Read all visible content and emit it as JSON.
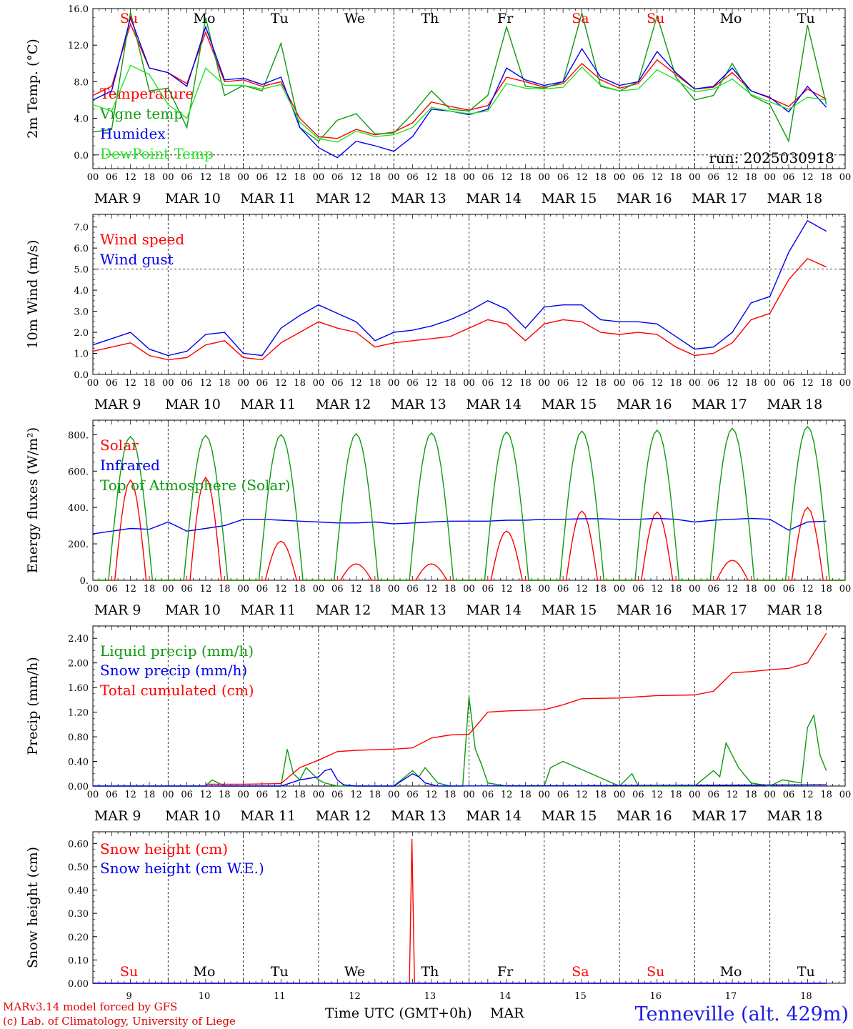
{
  "chart_data": [
    {
      "type": "line",
      "ylabel": "2m Temp. (°C)",
      "ylim": [
        -1.5,
        16.0
      ],
      "yticks": [
        "0.0",
        "4.0",
        "8.0",
        "12.0",
        "16.0"
      ],
      "ytick_values": [
        0,
        4,
        8,
        12,
        16
      ],
      "hline": 0,
      "annotation": "run: 2025030918",
      "series": [
        {
          "name": "Temperature",
          "color": "#ff0000",
          "t": [
            0,
            6,
            12,
            18,
            24,
            30,
            36,
            42,
            48,
            54,
            60,
            66,
            72,
            78,
            84,
            90,
            96,
            102,
            108,
            114,
            120,
            126,
            132,
            138,
            144,
            150,
            156,
            162,
            168,
            174,
            180,
            186,
            192,
            198,
            204,
            210,
            216,
            222,
            228,
            234
          ],
          "values": [
            6.5,
            7.5,
            14.3,
            9.5,
            9.0,
            7.8,
            13.4,
            8.0,
            8.2,
            7.5,
            8.0,
            4.0,
            2.0,
            1.8,
            2.8,
            2.2,
            2.5,
            3.5,
            5.8,
            5.3,
            4.9,
            5.4,
            8.5,
            8.0,
            7.4,
            7.8,
            10.0,
            8.2,
            7.3,
            7.8,
            10.4,
            8.8,
            7.2,
            7.4,
            9.0,
            7.0,
            6.2,
            5.3,
            7.2,
            6.1
          ]
        },
        {
          "name": "Vigne temp",
          "color": "#0f9a0f",
          "t": [
            0,
            6,
            12,
            18,
            24,
            30,
            36,
            42,
            48,
            54,
            60,
            66,
            72,
            78,
            84,
            90,
            96,
            102,
            108,
            114,
            120,
            126,
            132,
            138,
            144,
            150,
            156,
            162,
            168,
            174,
            180,
            186,
            192,
            198,
            204,
            210,
            216,
            222,
            228,
            234
          ],
          "values": [
            2.5,
            2.8,
            15.6,
            7.0,
            7.3,
            3.0,
            15.0,
            6.5,
            7.6,
            7.0,
            12.2,
            3.0,
            1.5,
            3.8,
            4.5,
            2.3,
            2.4,
            4.5,
            7.0,
            5.0,
            4.8,
            6.5,
            14.0,
            7.5,
            7.3,
            8.0,
            15.5,
            7.5,
            7.0,
            8.0,
            15.2,
            8.5,
            6.0,
            6.5,
            10.0,
            6.5,
            5.5,
            1.5,
            14.2,
            5.5
          ]
        },
        {
          "name": "Humidex",
          "color": "#0000ee",
          "t": [
            0,
            6,
            12,
            18,
            24,
            30,
            36,
            42,
            48,
            54,
            60,
            66,
            72,
            78,
            84,
            90,
            96,
            102,
            108,
            114,
            120,
            126,
            132,
            138,
            144,
            150,
            156,
            162,
            168,
            174,
            180,
            186,
            192,
            198,
            204,
            210,
            216,
            222,
            228,
            234
          ],
          "values": [
            6.0,
            7.0,
            15.0,
            9.5,
            9.0,
            7.5,
            14.0,
            8.2,
            8.4,
            7.7,
            8.5,
            3.0,
            0.8,
            -0.3,
            1.5,
            1.0,
            0.4,
            2.0,
            5.0,
            4.8,
            4.4,
            5.0,
            9.5,
            8.2,
            7.6,
            8.0,
            11.6,
            8.5,
            7.6,
            8.0,
            11.3,
            9.0,
            7.2,
            7.5,
            9.5,
            7.0,
            6.3,
            4.7,
            7.5,
            5.2
          ]
        },
        {
          "name": "DewPoint Temp",
          "color": "#22e622",
          "t": [
            0,
            6,
            12,
            18,
            24,
            30,
            36,
            42,
            48,
            54,
            60,
            66,
            72,
            78,
            84,
            90,
            96,
            102,
            108,
            114,
            120,
            126,
            132,
            138,
            144,
            150,
            156,
            162,
            168,
            174,
            180,
            186,
            192,
            198,
            204,
            210,
            216,
            222,
            228,
            234
          ],
          "values": [
            5.5,
            4.8,
            9.8,
            8.8,
            5.5,
            4.0,
            9.5,
            7.6,
            7.6,
            7.2,
            7.7,
            3.6,
            1.8,
            1.4,
            2.6,
            2.0,
            2.2,
            3.0,
            5.2,
            4.8,
            4.5,
            4.8,
            7.8,
            7.3,
            7.2,
            7.4,
            9.6,
            7.6,
            7.0,
            7.2,
            9.3,
            8.2,
            6.9,
            7.2,
            8.3,
            6.6,
            5.8,
            5.0,
            6.3,
            6.0
          ]
        }
      ]
    },
    {
      "type": "line",
      "ylabel": "10m Wind (m/s)",
      "ylim": [
        0,
        7.6
      ],
      "yticks": [
        "0.0",
        "1.0",
        "2.0",
        "3.0",
        "4.0",
        "5.0",
        "6.0",
        "7.0"
      ],
      "ytick_values": [
        0,
        1,
        2,
        3,
        4,
        5,
        6,
        7
      ],
      "hline": 5,
      "series": [
        {
          "name": "Wind speed",
          "color": "#ff0000",
          "t": [
            0,
            6,
            12,
            18,
            24,
            30,
            36,
            42,
            48,
            54,
            60,
            66,
            72,
            78,
            84,
            90,
            96,
            102,
            108,
            114,
            120,
            126,
            132,
            138,
            144,
            150,
            156,
            162,
            168,
            174,
            180,
            186,
            192,
            198,
            204,
            210,
            216,
            222,
            228,
            234
          ],
          "values": [
            1.1,
            1.3,
            1.5,
            0.9,
            0.7,
            0.8,
            1.4,
            1.6,
            0.8,
            0.7,
            1.5,
            2.0,
            2.5,
            2.2,
            2.0,
            1.3,
            1.5,
            1.6,
            1.7,
            1.8,
            2.2,
            2.6,
            2.4,
            1.6,
            2.4,
            2.6,
            2.5,
            2.0,
            1.9,
            2.0,
            1.9,
            1.3,
            0.9,
            1.0,
            1.5,
            2.6,
            2.9,
            4.5,
            5.5,
            5.1
          ]
        },
        {
          "name": "Wind gust",
          "color": "#0000ee",
          "t": [
            0,
            6,
            12,
            18,
            24,
            30,
            36,
            42,
            48,
            54,
            60,
            66,
            72,
            78,
            84,
            90,
            96,
            102,
            108,
            114,
            120,
            126,
            132,
            138,
            144,
            150,
            156,
            162,
            168,
            174,
            180,
            186,
            192,
            198,
            204,
            210,
            216,
            222,
            228,
            234
          ],
          "values": [
            1.4,
            1.7,
            2.0,
            1.2,
            0.9,
            1.1,
            1.9,
            2.0,
            1.0,
            0.9,
            2.2,
            2.8,
            3.3,
            2.9,
            2.5,
            1.6,
            2.0,
            2.1,
            2.3,
            2.6,
            3.0,
            3.5,
            3.1,
            2.2,
            3.2,
            3.3,
            3.3,
            2.6,
            2.5,
            2.5,
            2.4,
            1.8,
            1.2,
            1.3,
            2.0,
            3.4,
            3.7,
            5.8,
            7.3,
            6.8
          ]
        }
      ]
    },
    {
      "type": "line",
      "ylabel": "Energy fluxes (W/m²)",
      "ylim": [
        0,
        880
      ],
      "yticks": [
        "0.",
        "200.",
        "400.",
        "600.",
        "800."
      ],
      "ytick_values": [
        0,
        200,
        400,
        600,
        800
      ],
      "series": [
        {
          "name": "Solar",
          "color": "#ff0000",
          "peaks": [
            550,
            565,
            215,
            90,
            90,
            270,
            380,
            375,
            110,
            400
          ]
        },
        {
          "name": "Infrared",
          "color": "#0000ee",
          "t": [
            0,
            6,
            12,
            18,
            24,
            30,
            36,
            42,
            48,
            54,
            60,
            66,
            72,
            78,
            84,
            90,
            96,
            102,
            108,
            114,
            120,
            126,
            132,
            138,
            144,
            150,
            156,
            162,
            168,
            174,
            180,
            186,
            192,
            198,
            204,
            210,
            216,
            222,
            228,
            234
          ],
          "values": [
            255,
            270,
            285,
            280,
            320,
            270,
            285,
            300,
            335,
            335,
            330,
            325,
            320,
            315,
            315,
            320,
            310,
            315,
            320,
            325,
            325,
            325,
            330,
            330,
            335,
            335,
            338,
            338,
            335,
            335,
            340,
            335,
            320,
            330,
            335,
            340,
            335,
            275,
            320,
            325
          ]
        },
        {
          "name": "Top of Atmosphere (Solar)",
          "color": "#0f9a0f",
          "peaks": [
            790,
            795,
            800,
            805,
            810,
            815,
            820,
            825,
            835,
            845
          ]
        }
      ]
    },
    {
      "type": "line",
      "ylabel": "Precip (mm/h)",
      "ylim": [
        0,
        2.6
      ],
      "yticks": [
        "0.00",
        "0.40",
        "0.80",
        "1.20",
        "1.60",
        "2.00",
        "2.40"
      ],
      "ytick_values": [
        0,
        0.4,
        0.8,
        1.2,
        1.6,
        2.0,
        2.4
      ],
      "series": [
        {
          "name": "Liquid precip (mm/h)",
          "color": "#0f9a0f",
          "t": [
            0,
            24,
            36,
            38,
            42,
            48,
            54,
            60,
            62,
            64,
            66,
            68,
            72,
            74,
            78,
            84,
            96,
            102,
            104,
            106,
            110,
            114,
            118,
            120,
            122,
            124,
            126,
            132,
            144,
            146,
            150,
            168,
            172,
            174,
            192,
            198,
            200,
            202,
            204,
            206,
            210,
            216,
            220,
            226,
            228,
            230,
            232,
            234
          ],
          "values": [
            0,
            0,
            0,
            0.1,
            0,
            0,
            0,
            0,
            0.6,
            0.2,
            0.1,
            0.3,
            0.1,
            0.05,
            0,
            0,
            0,
            0.25,
            0.15,
            0.3,
            0.05,
            0,
            0,
            1.45,
            0.6,
            0.35,
            0.05,
            0,
            0,
            0.3,
            0.4,
            0,
            0.2,
            0,
            0,
            0.25,
            0.15,
            0.7,
            0.5,
            0.3,
            0.05,
            0,
            0.1,
            0.05,
            0.95,
            1.15,
            0.5,
            0.25
          ]
        },
        {
          "name": "Snow precip (mm/h)",
          "color": "#0000ee",
          "t": [
            0,
            60,
            66,
            72,
            74,
            76,
            78,
            80,
            84,
            90,
            96,
            102,
            104,
            106,
            110,
            114,
            234
          ],
          "values": [
            0,
            0,
            0.1,
            0.15,
            0.25,
            0.28,
            0.1,
            0.02,
            0,
            0,
            0,
            0.2,
            0.15,
            0.05,
            0,
            0,
            0.02
          ]
        },
        {
          "name": "Total cumulated (cm)",
          "color": "#ff0000",
          "t": [
            36,
            48,
            60,
            66,
            72,
            78,
            84,
            96,
            102,
            108,
            114,
            120,
            126,
            132,
            144,
            150,
            156,
            168,
            180,
            192,
            198,
            204,
            210,
            216,
            222,
            228,
            234
          ],
          "values": [
            0.03,
            0.03,
            0.04,
            0.3,
            0.42,
            0.56,
            0.58,
            0.6,
            0.62,
            0.78,
            0.83,
            0.84,
            1.2,
            1.22,
            1.24,
            1.32,
            1.42,
            1.43,
            1.47,
            1.48,
            1.54,
            1.84,
            1.86,
            1.89,
            1.91,
            2.0,
            2.48
          ]
        }
      ]
    },
    {
      "type": "line",
      "ylabel": "Snow height (cm)",
      "ylim": [
        0,
        0.65
      ],
      "yticks": [
        "0.00",
        "0.10",
        "0.20",
        "0.30",
        "0.40",
        "0.50",
        "0.60"
      ],
      "ytick_values": [
        0,
        0.1,
        0.2,
        0.3,
        0.4,
        0.5,
        0.6
      ],
      "xlabel": "Time UTC (GMT+0h)",
      "xmonth": "MAR",
      "series": [
        {
          "name": "Snow height (cm)",
          "color": "#ff0000",
          "t": [
            0,
            101,
            101.8,
            102.6,
            234
          ],
          "values": [
            0,
            0,
            0.62,
            0,
            0
          ]
        },
        {
          "name": "Snow height (cm W.E.)",
          "color": "#0000ee",
          "t": [
            0,
            234
          ],
          "values": [
            0,
            0
          ]
        }
      ]
    }
  ],
  "x_axis": {
    "hour_labels": [
      "00",
      "06",
      "12",
      "18"
    ],
    "date_labels": [
      "MAR  9",
      "MAR 10",
      "MAR 11",
      "MAR 12",
      "MAR 13",
      "MAR 14",
      "MAR 15",
      "MAR 16",
      "MAR 17",
      "MAR 18"
    ],
    "day_names": [
      "Su",
      "Mo",
      "Tu",
      "We",
      "Th",
      "Fr",
      "Sa",
      "Su",
      "Mo",
      "Tu"
    ],
    "day_colors": [
      "#ff0000",
      "#000000",
      "#000000",
      "#000000",
      "#000000",
      "#000000",
      "#ff0000",
      "#ff0000",
      "#000000",
      "#000000"
    ],
    "day_numbers": [
      "9",
      "10",
      "11",
      "12",
      "13",
      "14",
      "15",
      "16",
      "17",
      "18"
    ],
    "final_hour_label": "00"
  },
  "footer": {
    "line1": "MARv3.14 model forced by GFS",
    "line2": "(c) Lab. of Climatology, University of Liege",
    "station": "Tenneville (alt. 429m)"
  }
}
